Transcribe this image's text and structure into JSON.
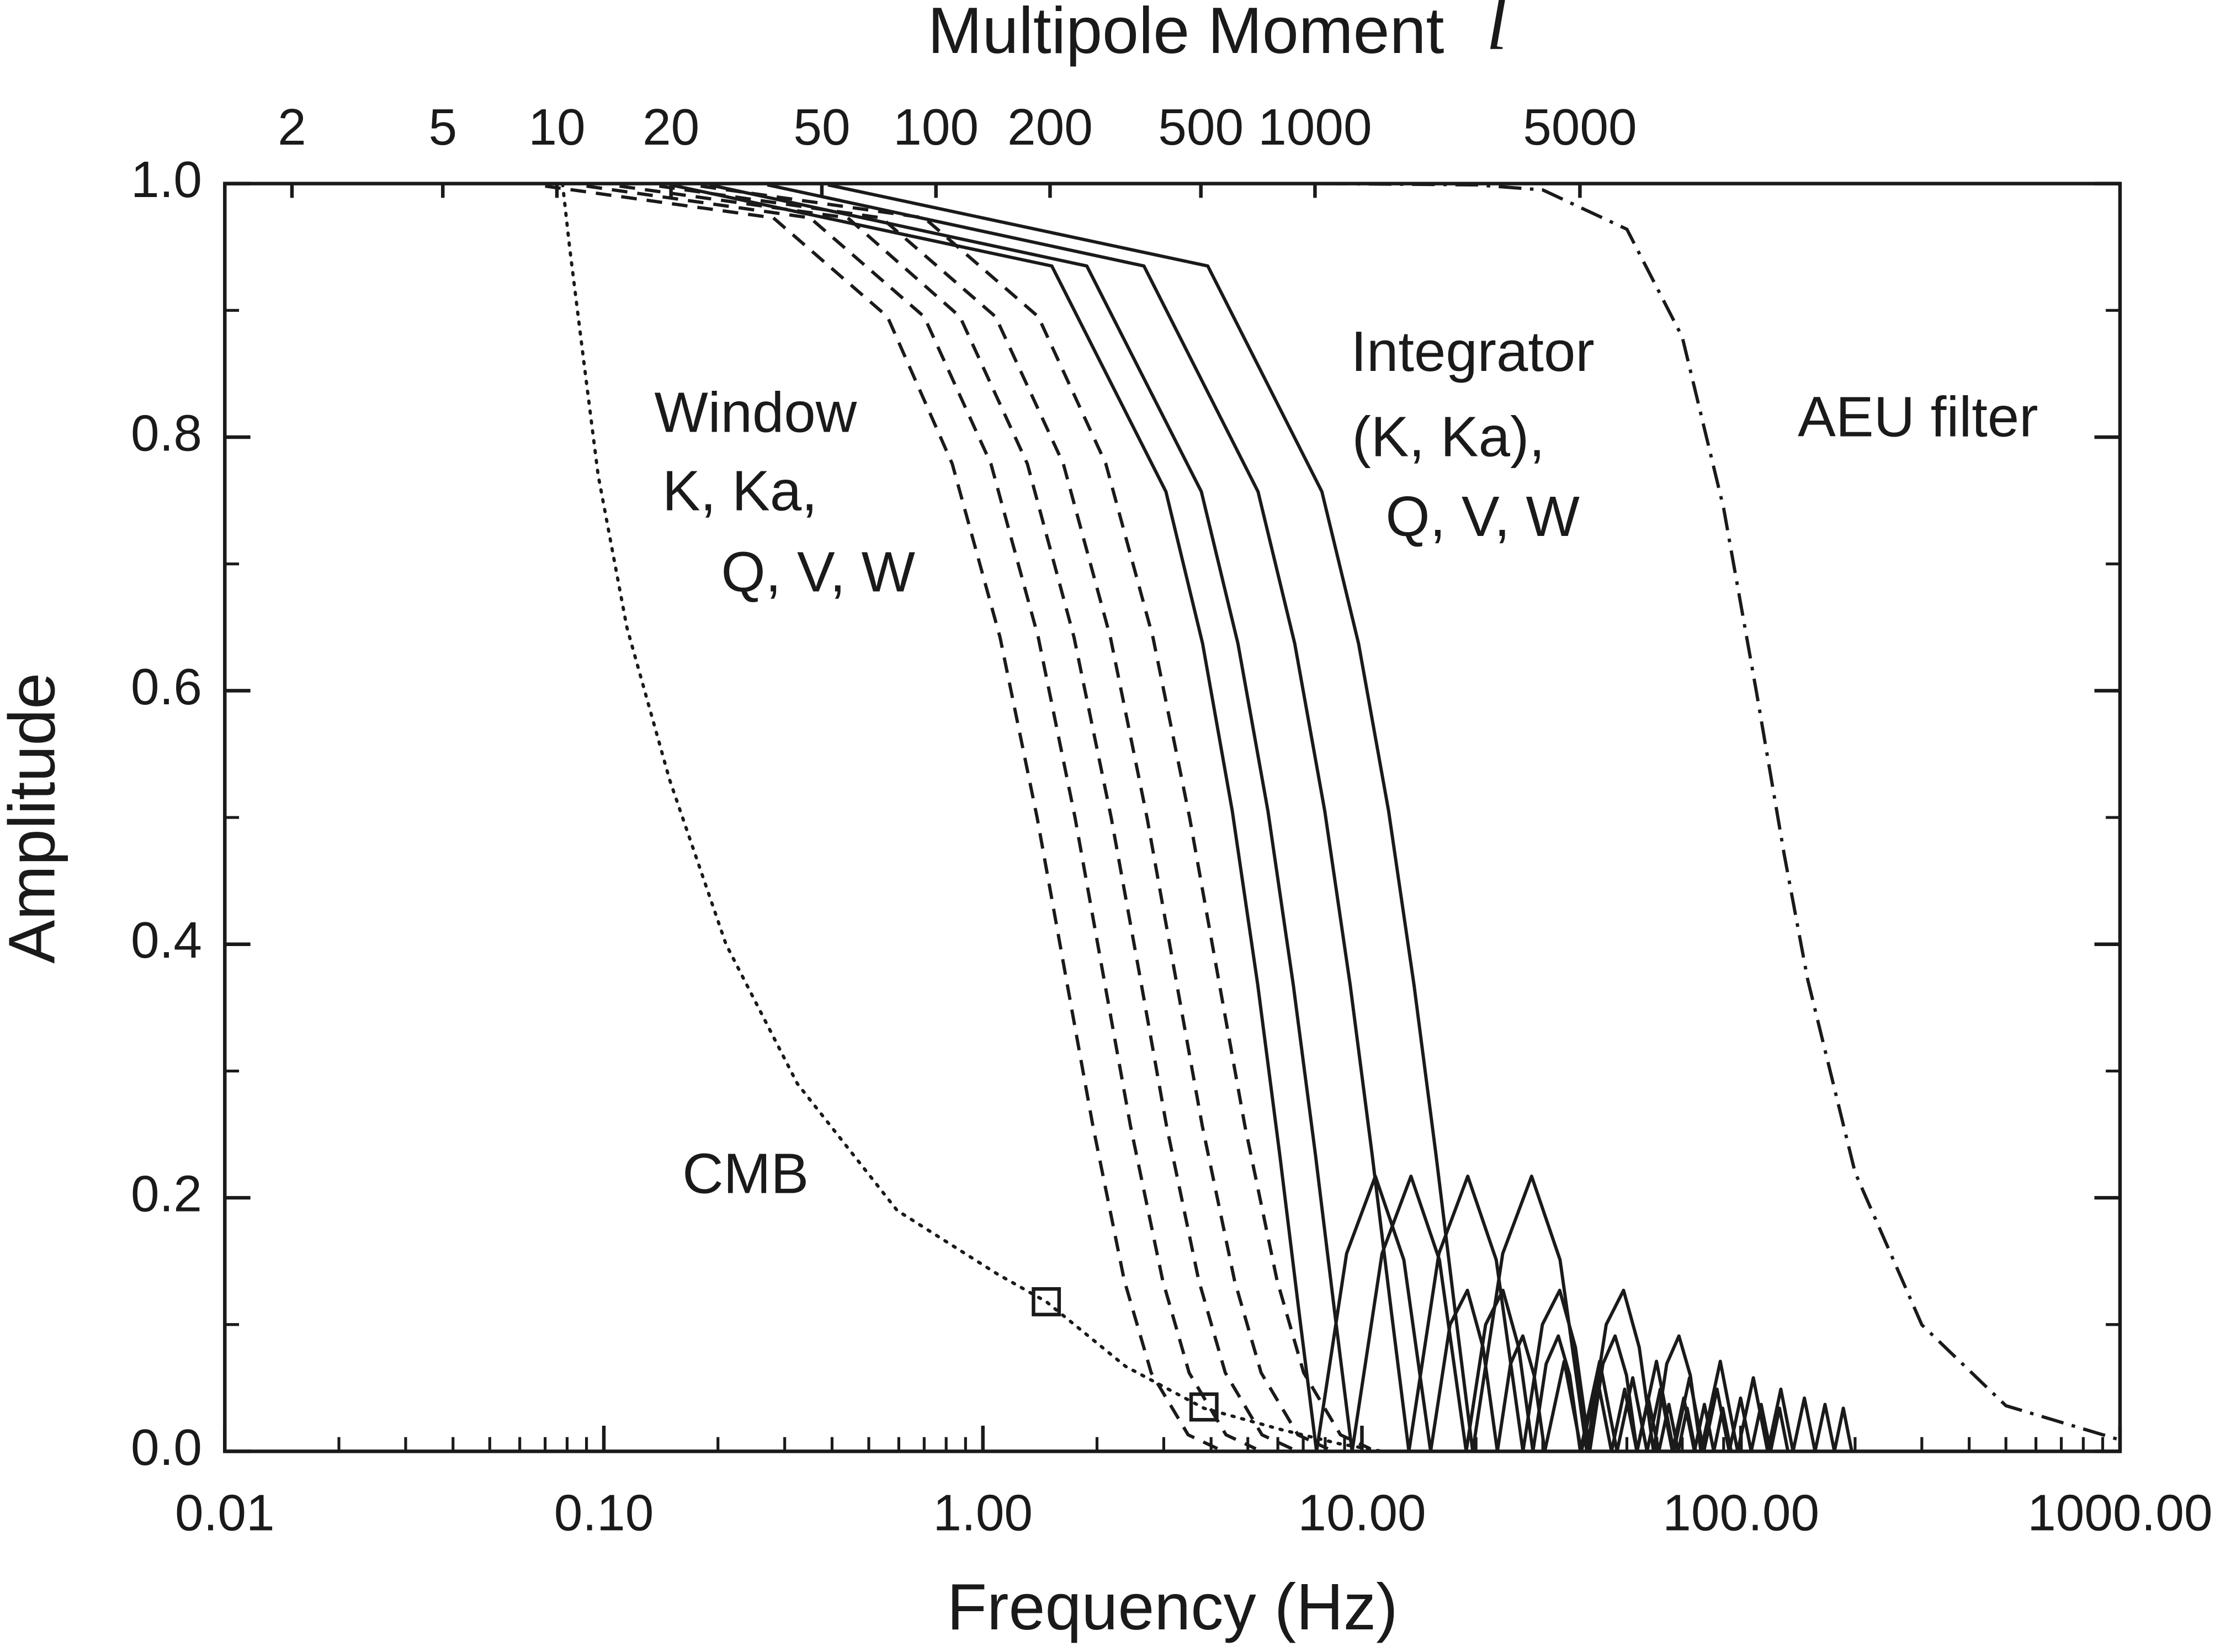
{
  "chart_data": {
    "type": "line",
    "top_axis_label": "Multipole Moment",
    "top_axis_symbol": "l",
    "x_label": "Frequency (Hz)",
    "y_label": "Amplitude",
    "xscale": "log",
    "xlim": [
      0.01,
      1000
    ],
    "xticks": [
      {
        "value": 0.01,
        "label": "0.01"
      },
      {
        "value": 0.1,
        "label": "0.10"
      },
      {
        "value": 1,
        "label": "1.00"
      },
      {
        "value": 10,
        "label": "10.00"
      },
      {
        "value": 100,
        "label": "100.00"
      },
      {
        "value": 1000,
        "label": "1000.00"
      }
    ],
    "x2lim": [
      1.33,
      133000
    ],
    "x2ticks": [
      2,
      5,
      10,
      20,
      50,
      100,
      200,
      500,
      1000,
      5000
    ],
    "ylim": [
      0,
      1
    ],
    "yticks": [
      {
        "value": 0,
        "label": "0.0"
      },
      {
        "value": 0.2,
        "label": "0.2"
      },
      {
        "value": 0.4,
        "label": "0.4"
      },
      {
        "value": 0.6,
        "label": "0.6"
      },
      {
        "value": 0.8,
        "label": "0.8"
      },
      {
        "value": 1,
        "label": "1.0"
      }
    ],
    "minor_ticks": true,
    "grid": false,
    "series": [
      {
        "style": "dotted",
        "color": "#1a1a1a",
        "x": [
          0.0778,
          0.0812,
          0.0885,
          0.0966,
          0.115,
          0.149,
          0.21,
          0.324,
          0.594,
          1.09,
          1.47,
          2.38,
          3.83,
          6.15,
          8.71,
          11.3
        ],
        "values": [
          1.0,
          0.95,
          0.86,
          0.77,
          0.65,
          0.53,
          0.4,
          0.29,
          0.19,
          0.14,
          0.118,
          0.067,
          0.034,
          0.017,
          0.006,
          0
        ]
      },
      {
        "style": "dashed",
        "color": "#1a1a1a",
        "x": [
          0.07,
          0.28,
          0.56,
          0.83,
          1.11,
          1.39,
          1.67,
          1.95,
          2.36,
          2.78,
          3.48,
          4.17
        ],
        "values": [
          0.998,
          0.973,
          0.895,
          0.779,
          0.642,
          0.5,
          0.368,
          0.257,
          0.135,
          0.062,
          0.013,
          0.002
        ]
      },
      {
        "style": "dashed",
        "color": "#1a1a1a",
        "x": [
          0.09,
          0.35,
          0.7,
          1.05,
          1.4,
          1.75,
          2.1,
          2.45,
          2.98,
          3.5,
          4.38,
          5.25
        ],
        "values": [
          0.998,
          0.973,
          0.895,
          0.779,
          0.642,
          0.5,
          0.368,
          0.257,
          0.135,
          0.062,
          0.013,
          0.002
        ]
      },
      {
        "style": "dashed",
        "color": "#1a1a1a",
        "x": [
          0.11,
          0.44,
          0.87,
          1.31,
          1.74,
          2.18,
          2.62,
          3.05,
          3.71,
          4.36,
          5.45,
          6.54
        ],
        "values": [
          0.998,
          0.973,
          0.895,
          0.779,
          0.642,
          0.5,
          0.368,
          0.257,
          0.135,
          0.062,
          0.013,
          0.002
        ]
      },
      {
        "style": "dashed",
        "color": "#1a1a1a",
        "x": [
          0.14,
          0.54,
          1.08,
          1.63,
          2.17,
          2.71,
          3.25,
          3.79,
          4.61,
          5.42,
          6.78,
          8.13
        ],
        "values": [
          0.998,
          0.973,
          0.895,
          0.779,
          0.642,
          0.5,
          0.368,
          0.257,
          0.135,
          0.062,
          0.013,
          0.002
        ]
      },
      {
        "style": "dashed",
        "color": "#1a1a1a",
        "x": [
          0.18,
          0.7,
          1.4,
          2.11,
          2.81,
          3.51,
          4.21,
          4.91,
          5.97,
          7.02,
          8.78,
          10.53
        ],
        "values": [
          0.998,
          0.973,
          0.895,
          0.779,
          0.642,
          0.5,
          0.368,
          0.257,
          0.135,
          0.062,
          0.013,
          0.002
        ]
      },
      {
        "style": "solid",
        "color": "#1a1a1a",
        "x": [
          0.15,
          1.52,
          3.04,
          3.8,
          4.55,
          5.31,
          6.07,
          6.83,
          7.59,
          9.11,
          10.85,
          12.9,
          15.18,
          17.08,
          18.98,
          20.87,
          22.77,
          24.67,
          26.57,
          28.46,
          30.36,
          34.16,
          37.95,
          41.75,
          45.54,
          49.34,
          53.13,
          56.93,
          60.72,
          64.52,
          68.31,
          72.11,
          75.9
        ],
        "values": [
          0.999,
          0.935,
          0.757,
          0.637,
          0.505,
          0.368,
          0.234,
          0.109,
          0,
          0.156,
          0.217,
          0.151,
          0,
          0.1,
          0.127,
          0.082,
          0,
          0.069,
          0.091,
          0.06,
          0,
          0.071,
          0,
          0.058,
          0,
          0.049,
          0,
          0.042,
          0,
          0.037,
          0,
          0.034,
          0
        ]
      },
      {
        "style": "solid",
        "color": "#1a1a1a",
        "x": [
          0.19,
          1.88,
          3.77,
          4.71,
          5.65,
          6.59,
          7.54,
          8.48,
          9.42,
          11.3,
          13.47,
          16.01,
          18.84,
          21.2,
          23.55,
          25.91,
          28.26,
          30.62,
          32.97,
          35.33,
          37.68,
          42.39,
          47.1,
          51.81,
          56.52,
          61.23,
          65.94,
          70.65,
          75.36,
          80.07,
          84.78,
          89.49,
          94.2
        ],
        "values": [
          0.999,
          0.935,
          0.757,
          0.637,
          0.505,
          0.368,
          0.234,
          0.109,
          0,
          0.156,
          0.217,
          0.151,
          0,
          0.1,
          0.127,
          0.082,
          0,
          0.069,
          0.091,
          0.06,
          0,
          0.071,
          0,
          0.058,
          0,
          0.049,
          0,
          0.042,
          0,
          0.037,
          0,
          0.034,
          0
        ]
      },
      {
        "style": "solid",
        "color": "#1a1a1a",
        "x": [
          0.27,
          2.66,
          5.32,
          6.65,
          7.98,
          9.31,
          10.64,
          11.97,
          13.3,
          15.96,
          19.02,
          22.61,
          26.6,
          29.93,
          33.25,
          36.58,
          39.9,
          43.23,
          46.55,
          49.88,
          53.2,
          59.85,
          66.5,
          73.15,
          79.8,
          86.45,
          93.1,
          99.75,
          106.4,
          113.05,
          119.7,
          126.35,
          133
        ],
        "values": [
          0.999,
          0.935,
          0.757,
          0.637,
          0.505,
          0.368,
          0.234,
          0.109,
          0,
          0.156,
          0.217,
          0.151,
          0,
          0.1,
          0.127,
          0.082,
          0,
          0.069,
          0.091,
          0.06,
          0,
          0.071,
          0,
          0.058,
          0,
          0.049,
          0,
          0.042,
          0,
          0.037,
          0,
          0.034,
          0
        ]
      },
      {
        "style": "solid",
        "color": "#1a1a1a",
        "x": [
          0.39,
          3.92,
          7.84,
          9.8,
          11.76,
          13.72,
          15.68,
          17.64,
          19.6,
          23.52,
          28.03,
          33.32,
          39.2,
          44.1,
          49,
          53.9,
          58.8,
          63.7,
          68.6,
          73.5,
          78.4,
          88.2,
          98,
          107.8,
          117.6,
          127.4,
          137.2,
          147,
          156.8,
          166.6,
          176.4,
          186.2,
          196
        ],
        "values": [
          0.999,
          0.935,
          0.757,
          0.637,
          0.505,
          0.368,
          0.234,
          0.109,
          0,
          0.156,
          0.217,
          0.151,
          0,
          0.1,
          0.127,
          0.082,
          0,
          0.069,
          0.091,
          0.06,
          0,
          0.071,
          0,
          0.058,
          0,
          0.049,
          0,
          0.042,
          0,
          0.037,
          0,
          0.034,
          0
        ]
      },
      {
        "style": "dashdot",
        "color": "#1a1a1a",
        "x": [
          8,
          20,
          30,
          50,
          70,
          90,
          110,
          130,
          150,
          200,
          300,
          500,
          1000
        ],
        "values": [
          1.0,
          0.999,
          0.995,
          0.964,
          0.879,
          0.744,
          0.598,
          0.471,
          0.372,
          0.22,
          0.0998,
          0.036,
          0.009
        ]
      }
    ],
    "markers": {
      "shape": "square",
      "color": "#1a1a1a",
      "x": [
        1.47,
        3.83
      ],
      "values": [
        0.118,
        0.035
      ]
    },
    "annotations": [
      {
        "lines": [
          "Window",
          "K, Ka,",
          "Q, V, W"
        ]
      },
      {
        "lines": [
          "Integrator",
          "(K, Ka),",
          "Q, V, W"
        ]
      },
      {
        "lines": [
          "AEU filter"
        ]
      },
      {
        "lines": [
          "CMB"
        ]
      }
    ]
  }
}
